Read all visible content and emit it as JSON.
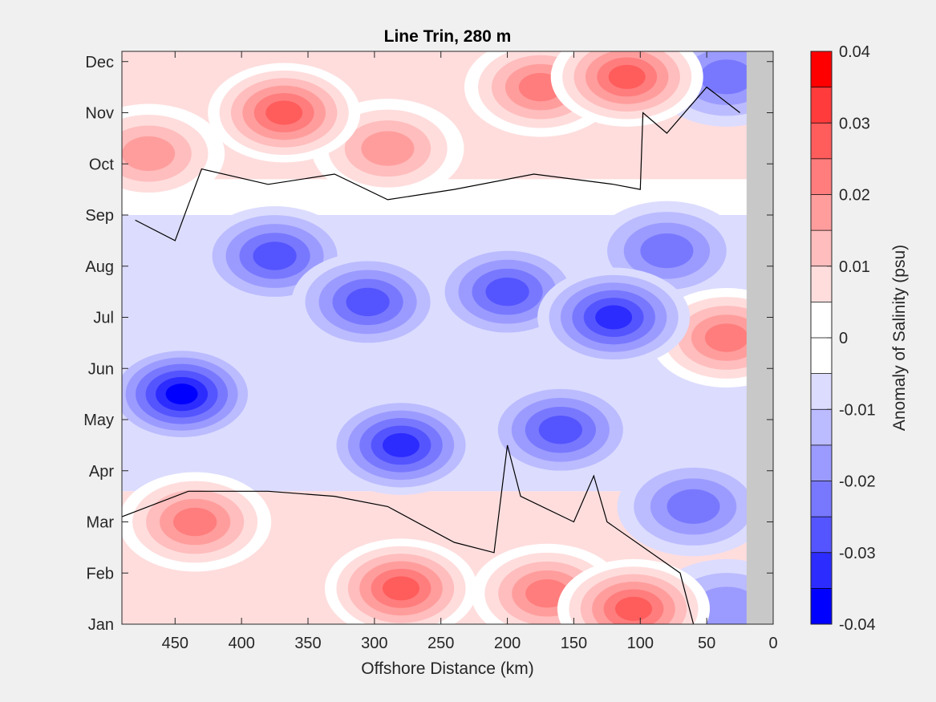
{
  "chart_data": {
    "type": "heatmap",
    "subtype": "filled-contour",
    "title": "Line Trin, 280 m",
    "xlabel": "Offshore Distance (km)",
    "ylabel": "",
    "xlim": [
      490,
      0
    ],
    "x_reversed": true,
    "x_ticks": [
      450,
      400,
      350,
      300,
      250,
      200,
      150,
      100,
      50,
      0
    ],
    "y_ticks": [
      "Jan",
      "Feb",
      "Mar",
      "Apr",
      "May",
      "Jun",
      "Jul",
      "Aug",
      "Sep",
      "Oct",
      "Nov",
      "Dec"
    ],
    "no_data_region": {
      "x_from_km": 20,
      "x_to_km": 0,
      "color": "#c8c8c8"
    },
    "zero_contour_color": "#000000",
    "colorbar": {
      "label": "Anomaly of Salinity (psu)",
      "limits": [
        -0.04,
        0.04
      ],
      "tick_values": [
        0.04,
        0.03,
        0.02,
        0.01,
        0,
        -0.01,
        -0.02,
        -0.03,
        -0.04
      ],
      "tick_labels": [
        "0.04",
        "0.03",
        "0.02",
        "0.01",
        "0",
        "-0.01",
        "-0.02",
        "-0.03",
        "-0.04"
      ],
      "levels": [
        {
          "color": "#ff0000",
          "from": 0.035,
          "to": 0.04
        },
        {
          "color": "#ff3b3b",
          "from": 0.03,
          "to": 0.035
        },
        {
          "color": "#ff5c5c",
          "from": 0.025,
          "to": 0.03
        },
        {
          "color": "#ff7d7d",
          "from": 0.02,
          "to": 0.025
        },
        {
          "color": "#ff9d9d",
          "from": 0.015,
          "to": 0.02
        },
        {
          "color": "#ffbdbd",
          "from": 0.01,
          "to": 0.015
        },
        {
          "color": "#ffdddd",
          "from": 0.005,
          "to": 0.01
        },
        {
          "color": "#ffffff",
          "from": 0,
          "to": 0.005
        },
        {
          "color": "#ffffff",
          "from": -0.005,
          "to": 0
        },
        {
          "color": "#dcdcff",
          "from": -0.01,
          "to": -0.005
        },
        {
          "color": "#bbbbff",
          "from": -0.015,
          "to": -0.01
        },
        {
          "color": "#9b9bff",
          "from": -0.02,
          "to": -0.015
        },
        {
          "color": "#7878ff",
          "from": -0.025,
          "to": -0.02
        },
        {
          "color": "#5555ff",
          "from": -0.03,
          "to": -0.025
        },
        {
          "color": "#2c2cff",
          "from": -0.035,
          "to": -0.03
        },
        {
          "color": "#0000ff",
          "from": -0.04,
          "to": -0.035
        }
      ]
    },
    "features": [
      {
        "sign": "positive",
        "x_km": 368,
        "month": 11.0,
        "value": 0.03
      },
      {
        "sign": "positive",
        "x_km": 290,
        "month": 10.3,
        "value": 0.02
      },
      {
        "sign": "positive",
        "x_km": 175,
        "month": 11.5,
        "value": 0.025
      },
      {
        "sign": "positive",
        "x_km": 110,
        "month": 11.7,
        "value": 0.03
      },
      {
        "sign": "positive",
        "x_km": 470,
        "month": 10.2,
        "value": 0.02
      },
      {
        "sign": "positive",
        "x_km": 435,
        "month": 3.0,
        "value": 0.025
      },
      {
        "sign": "positive",
        "x_km": 280,
        "month": 1.7,
        "value": 0.03
      },
      {
        "sign": "positive",
        "x_km": 170,
        "month": 1.6,
        "value": 0.025
      },
      {
        "sign": "positive",
        "x_km": 105,
        "month": 1.3,
        "value": 0.03
      },
      {
        "sign": "positive",
        "x_km": 35,
        "month": 6.6,
        "value": 0.025
      },
      {
        "sign": "negative",
        "x_km": 445,
        "month": 5.5,
        "value": -0.035
      },
      {
        "sign": "negative",
        "x_km": 280,
        "month": 4.5,
        "value": -0.03
      },
      {
        "sign": "negative",
        "x_km": 375,
        "month": 8.2,
        "value": -0.025
      },
      {
        "sign": "negative",
        "x_km": 305,
        "month": 7.3,
        "value": -0.025
      },
      {
        "sign": "negative",
        "x_km": 120,
        "month": 7.0,
        "value": -0.03
      },
      {
        "sign": "negative",
        "x_km": 160,
        "month": 4.8,
        "value": -0.025
      },
      {
        "sign": "negative",
        "x_km": 200,
        "month": 7.5,
        "value": -0.025
      },
      {
        "sign": "negative",
        "x_km": 60,
        "month": 3.3,
        "value": -0.02
      },
      {
        "sign": "negative",
        "x_km": 80,
        "month": 8.3,
        "value": -0.02
      },
      {
        "sign": "negative",
        "x_km": 35,
        "month": 11.7,
        "value": -0.02
      },
      {
        "sign": "negative",
        "x_km": 35,
        "month": 1.3,
        "value": -0.015
      }
    ]
  }
}
